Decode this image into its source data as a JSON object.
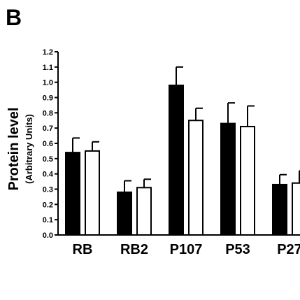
{
  "panel_label": "B",
  "chart_data": {
    "type": "bar",
    "ylabel": "Protein level",
    "ylabel_sub": "(Arbitrary Units)",
    "ylim": [
      0,
      1.2
    ],
    "yticks": [
      "0.0",
      "0.1",
      "0.2",
      "0.3",
      "0.4",
      "0.5",
      "0.6",
      "0.7",
      "0.8",
      "0.9",
      "1.0",
      "1.1",
      "1.2"
    ],
    "categories": [
      "RB",
      "RB2",
      "P107",
      "P53",
      "P27"
    ],
    "series": [
      {
        "fill": "#000000",
        "values": [
          0.54,
          0.28,
          0.98,
          0.73,
          0.33
        ],
        "errors": [
          0.095,
          0.075,
          0.12,
          0.135,
          0.065
        ]
      },
      {
        "fill": "#ffffff",
        "values": [
          0.55,
          0.31,
          0.75,
          0.71,
          0.34
        ],
        "errors": [
          0.06,
          0.055,
          0.08,
          0.135,
          0.08
        ]
      }
    ]
  }
}
